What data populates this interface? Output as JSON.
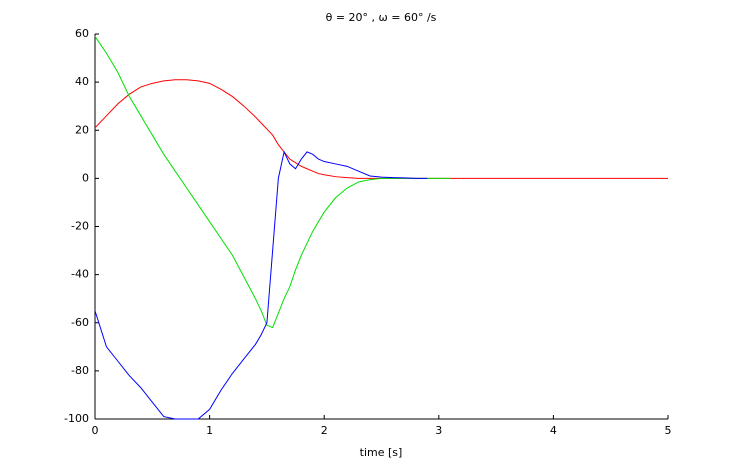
{
  "chart_data": {
    "type": "line",
    "title": "θ = 20° , ω = 60° /s",
    "xlabel": "time [s]",
    "x": [
      0,
      0.1,
      0.2,
      0.3,
      0.4,
      0.5,
      0.6,
      0.7,
      0.8,
      0.9,
      1,
      1.1,
      1.2,
      1.3,
      1.4,
      1.45,
      1.5,
      1.55,
      1.6,
      1.65,
      1.7,
      1.75,
      1.8,
      1.85,
      1.9,
      1.95,
      2,
      2.1,
      2.2,
      2.3,
      2.4,
      2.5,
      2.6,
      2.7,
      2.8,
      2.9,
      3,
      3.1,
      3.2,
      3.5,
      4,
      4.5,
      5
    ],
    "series": [
      {
        "color": "#ff0000",
        "values": [
          21,
          26,
          31,
          35,
          38,
          39.5,
          40.5,
          41,
          41,
          40.5,
          39.5,
          37,
          34,
          30,
          25.5,
          23,
          20.5,
          18,
          14,
          11,
          8,
          6.5,
          5,
          4,
          3,
          2,
          1.5,
          0.7,
          0.3,
          0,
          0,
          0,
          0,
          0,
          0,
          0,
          0,
          0,
          0,
          0,
          0,
          0,
          0
        ]
      },
      {
        "color": "#00e000",
        "values": [
          59,
          52,
          44,
          34,
          26,
          18,
          10,
          3,
          -4,
          -11,
          -18,
          -25,
          -32,
          -41,
          -50,
          -55,
          -61,
          -62,
          -56,
          -50,
          -45,
          -38,
          -32,
          -27,
          -22,
          -18,
          -14,
          -8,
          -4,
          -1.5,
          -0.5,
          0,
          0,
          0,
          0,
          0,
          0,
          0,
          null,
          null,
          null,
          null,
          null
        ]
      },
      {
        "color": "#0000ff",
        "values": [
          -55,
          -70,
          -76,
          -82,
          -87,
          -93,
          -99,
          -100,
          -100,
          -100,
          -96,
          -88,
          -81,
          -75,
          -69,
          -65,
          -60,
          -30,
          0,
          11,
          6,
          4,
          8,
          11,
          10,
          8,
          7,
          6,
          5,
          3,
          1,
          0.5,
          0.3,
          0.2,
          0,
          0,
          null,
          null,
          null,
          null,
          null,
          null,
          null
        ]
      }
    ],
    "xlim": [
      0,
      5
    ],
    "xticks": [
      0,
      1,
      2,
      3,
      4,
      5
    ],
    "ylim": [
      -100,
      60
    ],
    "yticks": [
      -100,
      -80,
      -60,
      -40,
      -20,
      0,
      20,
      40,
      60
    ]
  }
}
